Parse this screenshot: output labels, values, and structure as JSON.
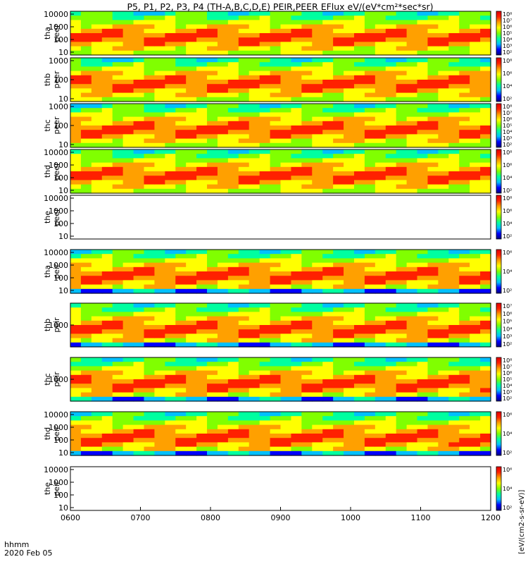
{
  "chart_data": {
    "type": "heatmap",
    "title": "P5, P1, P2, P3, P4 (TH-A,B,C,D,E) PEIR,PEER EFlux eV/(eV*cm²*sec*sr)",
    "xlabel_top": "hhmm",
    "xlabel_bottom": "2020 Feb 05",
    "x_ticks": [
      "0600",
      "0700",
      "0800",
      "0900",
      "1000",
      "1100",
      "1200"
    ],
    "x_range": [
      "0600",
      "1200"
    ],
    "yscale": "log",
    "colorbar_label": "[eV/(cm2-s-sr-eV)]",
    "colormap": [
      "#000080",
      "#0000ff",
      "#00c0ff",
      "#00ffa0",
      "#80ff00",
      "#ffff00",
      "#ffa000",
      "#ff2000",
      "#e00000"
    ],
    "panels": [
      {
        "label_top": "tha",
        "label_bottom": "peer",
        "y_ticks": [
          "10",
          "100",
          "1000",
          "10000"
        ],
        "cbar_ticks": [
          "10²",
          "10³",
          "10⁴",
          "10⁵",
          "10⁶",
          "10⁷",
          "10⁸"
        ],
        "has_data": true
      },
      {
        "label_top": "thb",
        "label_bottom": "peer",
        "y_ticks": [
          "10",
          "100",
          "1000"
        ],
        "cbar_ticks": [
          "10²",
          "10⁴",
          "10⁶",
          "10⁸"
        ],
        "has_data": true
      },
      {
        "label_top": "thc",
        "label_bottom": "peer",
        "y_ticks": [
          "10",
          "100",
          "1000"
        ],
        "cbar_ticks": [
          "10²",
          "10³",
          "10⁴",
          "10⁵",
          "10⁶",
          "10⁷",
          "10⁸"
        ],
        "has_data": true
      },
      {
        "label_top": "thd",
        "label_bottom": "peer",
        "y_ticks": [
          "10",
          "100",
          "1000",
          "10000"
        ],
        "cbar_ticks": [
          "10²",
          "10⁴",
          "10⁶",
          "10⁸"
        ],
        "has_data": true
      },
      {
        "label_top": "the",
        "label_bottom": "peer",
        "y_ticks": [
          "10",
          "100",
          "1000",
          "10000"
        ],
        "cbar_ticks": [
          "10²",
          "10⁴",
          "10⁶",
          "10⁸"
        ],
        "has_data": false
      },
      {
        "label_top": "tha",
        "label_bottom": "peir",
        "y_ticks": [
          "10",
          "100",
          "1000",
          "10000"
        ],
        "cbar_ticks": [
          "10²",
          "10⁴",
          "10⁶"
        ],
        "has_data": true
      },
      {
        "label_top": "thb",
        "label_bottom": "peir",
        "y_ticks": [
          "1000"
        ],
        "cbar_ticks": [
          "10²",
          "10³",
          "10⁴",
          "10⁵",
          "10⁶",
          "10⁷"
        ],
        "has_data": true
      },
      {
        "label_top": "thc",
        "label_bottom": "peir",
        "y_ticks": [
          "1000"
        ],
        "cbar_ticks": [
          "10²",
          "10³",
          "10⁴",
          "10⁵",
          "10⁶",
          "10⁷",
          "10⁸"
        ],
        "has_data": true
      },
      {
        "label_top": "thd",
        "label_bottom": "peir",
        "y_ticks": [
          "10",
          "100",
          "1000",
          "10000"
        ],
        "cbar_ticks": [
          "10²",
          "10⁴",
          "10⁶"
        ],
        "has_data": true
      },
      {
        "label_top": "the",
        "label_bottom": "peir",
        "y_ticks": [
          "10",
          "100",
          "1000",
          "10000"
        ],
        "cbar_ticks": [
          "10²",
          "10⁴",
          "10⁶"
        ],
        "has_data": false
      }
    ]
  }
}
